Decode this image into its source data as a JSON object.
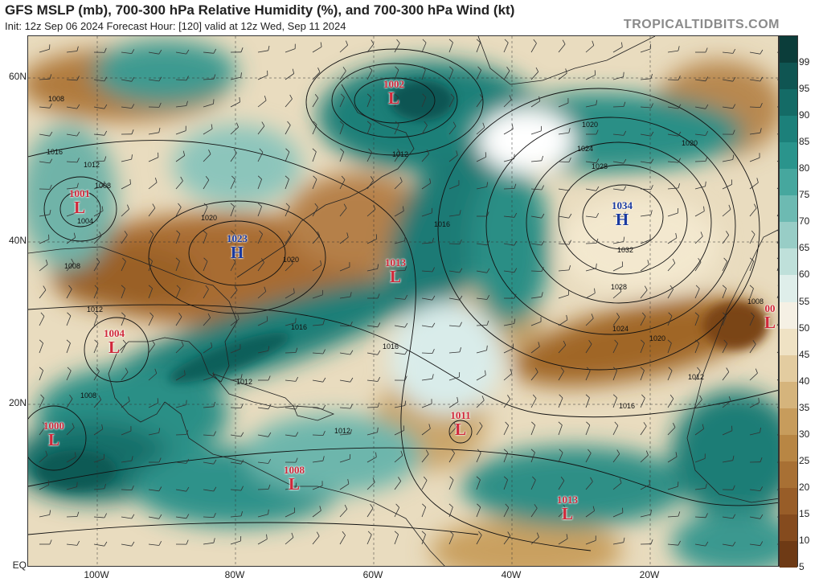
{
  "header": {
    "title": "GFS MSLP (mb), 700-300 hPa Relative Humidity (%), and 700-300 hPa Wind (kt)",
    "subtitle": "Init: 12z Sep 06 2024   Forecast Hour: [120]   valid at 12z Wed, Sep 11 2024",
    "brand": "TROPICALTIDBITS.COM"
  },
  "axes": {
    "lat_labels": [
      "60N",
      "40N",
      "20N",
      "EQ"
    ],
    "lon_labels": [
      "100W",
      "80W",
      "60W",
      "40W",
      "20W"
    ]
  },
  "colorbar": {
    "labels": [
      "99",
      "95",
      "90",
      "85",
      "80",
      "75",
      "70",
      "65",
      "60",
      "55",
      "50",
      "45",
      "40",
      "35",
      "30",
      "25",
      "20",
      "15",
      "10",
      "5"
    ],
    "colors": [
      "#0b3d3a",
      "#0f5552",
      "#146b66",
      "#1c807a",
      "#2a948c",
      "#46a79e",
      "#6dbab2",
      "#98cdc6",
      "#bfe0da",
      "#dfeeea",
      "#f5f0e4",
      "#efe2c4",
      "#e3cca0",
      "#d5b47c",
      "#c79c5c",
      "#b88644",
      "#a87034",
      "#985d28",
      "#854b1e",
      "#6e3a15"
    ]
  },
  "pressure_systems": [
    {
      "type": "L",
      "pressure": "1002"
    },
    {
      "type": "L",
      "pressure": "1001"
    },
    {
      "type": "H",
      "pressure": "1023"
    },
    {
      "type": "L",
      "pressure": "1013"
    },
    {
      "type": "H",
      "pressure": "1034"
    },
    {
      "type": "L",
      "pressure": "1004"
    },
    {
      "type": "L",
      "pressure": "1000"
    },
    {
      "type": "L",
      "pressure": "1011"
    },
    {
      "type": "L",
      "pressure": "1008"
    },
    {
      "type": "L",
      "pressure": "1013"
    },
    {
      "type": "L",
      "pressure": "00"
    }
  ],
  "isobar_labels": [
    "1008",
    "1016",
    "1012",
    "1008",
    "1004",
    "1020",
    "1020",
    "1008",
    "1012",
    "1016",
    "1016",
    "1012",
    "1008",
    "1016",
    "1012",
    "1020",
    "1024",
    "1028",
    "1032",
    "1028",
    "1024",
    "1020",
    "1016",
    "1012",
    "1008",
    "1020",
    "1012"
  ]
}
